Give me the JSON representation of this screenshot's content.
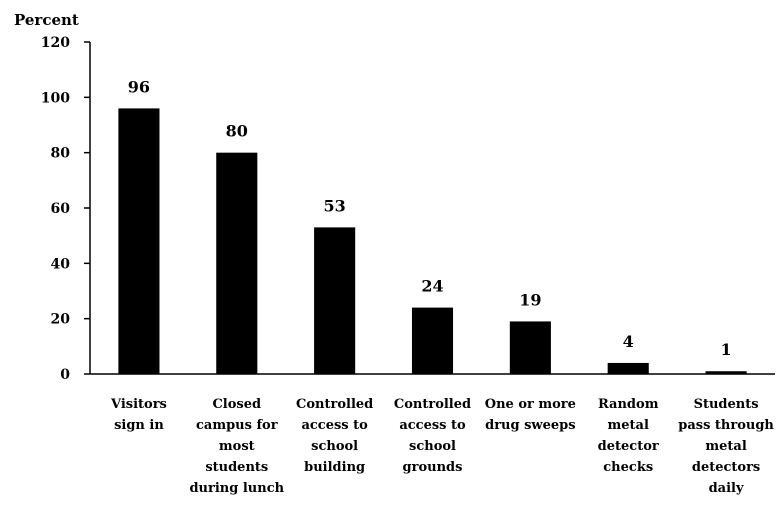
{
  "chart_data": {
    "type": "bar",
    "ylabel": "Percent",
    "ylim": [
      0,
      120
    ],
    "yticks": [
      0,
      20,
      40,
      60,
      80,
      100,
      120
    ],
    "grid": false,
    "legend": "none",
    "bar_color": "#000000",
    "categories": [
      [
        "Visitors",
        "sign in"
      ],
      [
        "Closed",
        "campus for",
        "most",
        "students",
        "during lunch"
      ],
      [
        "Controlled",
        "access to",
        "school",
        "building"
      ],
      [
        "Controlled",
        "access to",
        "school",
        "grounds"
      ],
      [
        "One or more",
        "drug sweeps"
      ],
      [
        "Random",
        "metal",
        "detector",
        "checks"
      ],
      [
        "Students",
        "pass through",
        "metal",
        "detectors",
        "daily"
      ]
    ],
    "values": [
      96,
      80,
      53,
      24,
      19,
      4,
      1
    ]
  }
}
